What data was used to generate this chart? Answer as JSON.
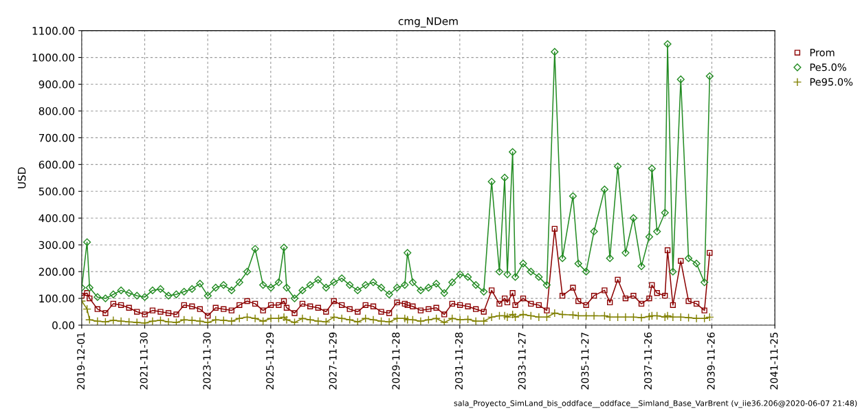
{
  "chart_data": {
    "type": "line",
    "title": "cmg_NDem",
    "ylabel": "USD",
    "x": [
      "2019-12",
      "2020-02",
      "2020-03",
      "2020-06",
      "2020-09",
      "2020-12",
      "2021-03",
      "2021-06",
      "2021-09",
      "2021-12",
      "2022-03",
      "2022-06",
      "2022-09",
      "2022-12",
      "2023-03",
      "2023-06",
      "2023-09",
      "2023-12",
      "2024-03",
      "2024-06",
      "2024-09",
      "2024-12",
      "2025-03",
      "2025-06",
      "2025-09",
      "2025-12",
      "2026-03",
      "2026-05",
      "2026-06",
      "2026-09",
      "2026-12",
      "2027-03",
      "2027-06",
      "2027-09",
      "2027-12",
      "2028-03",
      "2028-06",
      "2028-09",
      "2028-12",
      "2029-03",
      "2029-06",
      "2029-09",
      "2029-12",
      "2030-03",
      "2030-04",
      "2030-06",
      "2030-09",
      "2030-12",
      "2031-03",
      "2031-06",
      "2031-09",
      "2031-12",
      "2032-03",
      "2032-06",
      "2032-09",
      "2032-12",
      "2033-03",
      "2033-05",
      "2033-06",
      "2033-08",
      "2033-09",
      "2033-12",
      "2034-03",
      "2034-06",
      "2034-09",
      "2034-12",
      "2035-03",
      "2035-07",
      "2035-09",
      "2035-12",
      "2036-03",
      "2036-07",
      "2036-09",
      "2036-12",
      "2037-03",
      "2037-06",
      "2037-09",
      "2037-12",
      "2038-01",
      "2038-03",
      "2038-06",
      "2038-07",
      "2038-09",
      "2038-12",
      "2039-03",
      "2039-06",
      "2039-09",
      "2039-11"
    ],
    "series": [
      {
        "name": "Prom",
        "color": "#8b0000",
        "marker": "square",
        "values": [
          110,
          120,
          100,
          60,
          45,
          80,
          75,
          65,
          50,
          40,
          55,
          50,
          45,
          40,
          75,
          70,
          60,
          35,
          65,
          60,
          55,
          75,
          90,
          80,
          55,
          75,
          75,
          90,
          65,
          45,
          80,
          70,
          65,
          50,
          90,
          75,
          60,
          50,
          75,
          70,
          50,
          45,
          85,
          80,
          75,
          70,
          55,
          60,
          65,
          40,
          80,
          75,
          70,
          60,
          50,
          130,
          80,
          100,
          85,
          120,
          75,
          100,
          80,
          75,
          55,
          360,
          110,
          140,
          90,
          75,
          110,
          130,
          85,
          170,
          100,
          110,
          80,
          100,
          150,
          120,
          110,
          280,
          75,
          240,
          90,
          80,
          55,
          270
        ]
      },
      {
        "name": "Pe5.0%",
        "color": "#228b22",
        "marker": "diamond",
        "values": [
          140,
          310,
          140,
          105,
          100,
          115,
          130,
          120,
          110,
          105,
          130,
          135,
          110,
          115,
          125,
          135,
          155,
          110,
          140,
          150,
          130,
          160,
          200,
          285,
          150,
          140,
          160,
          290,
          140,
          100,
          130,
          150,
          170,
          140,
          160,
          175,
          150,
          130,
          150,
          160,
          140,
          115,
          140,
          150,
          270,
          160,
          130,
          140,
          155,
          120,
          160,
          190,
          180,
          150,
          125,
          536,
          200,
          551,
          190,
          647,
          180,
          230,
          200,
          180,
          150,
          1021,
          250,
          482,
          230,
          200,
          350,
          507,
          250,
          593,
          270,
          400,
          220,
          330,
          585,
          350,
          420,
          1050,
          200,
          918,
          250,
          230,
          160,
          930
        ]
      },
      {
        "name": "Pe95.0%",
        "color": "#808000",
        "marker": "cross",
        "values": [
          90,
          60,
          20,
          15,
          12,
          18,
          15,
          12,
          10,
          8,
          15,
          18,
          12,
          10,
          20,
          18,
          15,
          10,
          20,
          18,
          15,
          25,
          30,
          25,
          15,
          25,
          25,
          30,
          20,
          10,
          25,
          20,
          15,
          12,
          30,
          25,
          20,
          12,
          25,
          20,
          15,
          12,
          25,
          25,
          20,
          20,
          15,
          20,
          25,
          10,
          25,
          20,
          22,
          15,
          15,
          30,
          35,
          35,
          30,
          40,
          30,
          40,
          35,
          30,
          30,
          45,
          40,
          38,
          35,
          35,
          35,
          35,
          30,
          30,
          30,
          30,
          28,
          32,
          35,
          35,
          30,
          35,
          30,
          30,
          28,
          25,
          25,
          30
        ]
      }
    ],
    "xlim": [
      "2019-12-01",
      "2041-11-25"
    ],
    "xticks": [
      "2019-12-01",
      "2021-11-30",
      "2023-11-30",
      "2025-11-29",
      "2027-11-29",
      "2029-11-28",
      "2031-11-28",
      "2033-11-27",
      "2035-11-27",
      "2037-11-26",
      "2039-11-26",
      "2041-11-25"
    ],
    "ylim": [
      0,
      1100
    ],
    "yticks": [
      {
        "value": 0,
        "label": "0.00"
      },
      {
        "value": 100,
        "label": "100.00"
      },
      {
        "value": 200,
        "label": "200.00"
      },
      {
        "value": 300,
        "label": "300.00"
      },
      {
        "value": 400,
        "label": "400.00"
      },
      {
        "value": 500,
        "label": "500.00"
      },
      {
        "value": 600,
        "label": "600.00"
      },
      {
        "value": 700,
        "label": "700.00"
      },
      {
        "value": 800,
        "label": "800.00"
      },
      {
        "value": 900,
        "label": "900.00"
      },
      {
        "value": 1000,
        "label": "1000.00"
      },
      {
        "value": 1100,
        "label": "1100.00"
      }
    ],
    "grid": true,
    "legend": "top right",
    "line_style": "solid",
    "annotations": [
      "sala_Proyecto_SimLand_bis_oddface__oddface__Simland_Base_VarBrent (v_iie36.206@2020-06-07 21:48)"
    ]
  }
}
